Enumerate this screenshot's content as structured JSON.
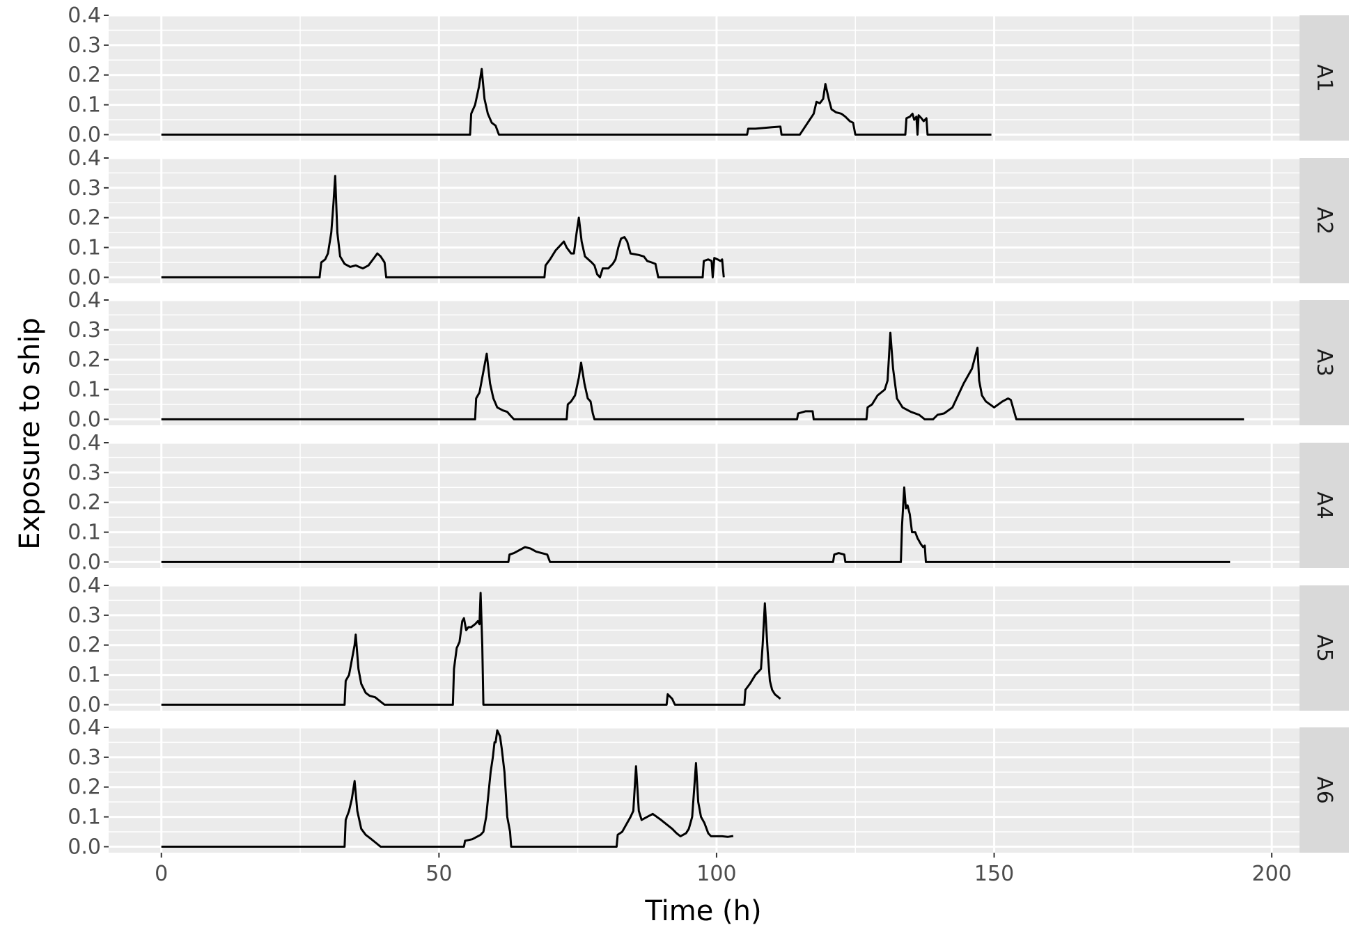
{
  "chart_data": {
    "type": "line",
    "xlabel": "Time (h)",
    "ylabel": "Exposure to ship",
    "xlim": [
      -9.5,
      205
    ],
    "ylim": [
      -0.02,
      0.4
    ],
    "x_ticks": [
      0,
      50,
      100,
      150,
      200
    ],
    "x_tick_labels": [
      "0",
      "50",
      "100",
      "150",
      "200"
    ],
    "y_ticks": [
      0,
      0.1,
      0.2,
      0.3,
      0.4
    ],
    "y_tick_labels": [
      "0.0",
      "0.1",
      "0.2",
      "0.3",
      "0.4"
    ],
    "grid": true,
    "facet_direction": "rows",
    "line_color": "#000000",
    "panel_background": "#ebebeb",
    "strip_background": "#d9d9d9",
    "series": [
      {
        "name": "A1",
        "points": [
          [
            0,
            0
          ],
          [
            55.6,
            0
          ],
          [
            55.8,
            0.07
          ],
          [
            56.5,
            0.1
          ],
          [
            57.2,
            0.16
          ],
          [
            57.7,
            0.22
          ],
          [
            58.2,
            0.12
          ],
          [
            58.8,
            0.07
          ],
          [
            59.5,
            0.04
          ],
          [
            60.2,
            0.03
          ],
          [
            60.6,
            0.01
          ],
          [
            60.8,
            0
          ],
          [
            105.5,
            0
          ],
          [
            105.7,
            0.02
          ],
          [
            107,
            0.02
          ],
          [
            110,
            0.025
          ],
          [
            111.5,
            0.027
          ],
          [
            111.7,
            0
          ],
          [
            115,
            0
          ],
          [
            117.5,
            0.07
          ],
          [
            118,
            0.11
          ],
          [
            118.6,
            0.105
          ],
          [
            119.2,
            0.12
          ],
          [
            119.6,
            0.17
          ],
          [
            120.2,
            0.12
          ],
          [
            120.7,
            0.085
          ],
          [
            121.5,
            0.075
          ],
          [
            122.5,
            0.07
          ],
          [
            123.2,
            0.06
          ],
          [
            124,
            0.045
          ],
          [
            124.6,
            0.04
          ],
          [
            125,
            0
          ],
          [
            134,
            0
          ],
          [
            134.2,
            0.055
          ],
          [
            134.8,
            0.06
          ],
          [
            135.3,
            0.07
          ],
          [
            135.6,
            0.05
          ],
          [
            136,
            0.06
          ],
          [
            136.2,
            0
          ],
          [
            136.4,
            0.065
          ],
          [
            136.9,
            0.055
          ],
          [
            137.3,
            0.045
          ],
          [
            137.8,
            0.055
          ],
          [
            138,
            0
          ],
          [
            149.5,
            0
          ]
        ]
      },
      {
        "name": "A2",
        "points": [
          [
            0,
            0
          ],
          [
            28.5,
            0
          ],
          [
            28.8,
            0.05
          ],
          [
            29.5,
            0.06
          ],
          [
            30,
            0.08
          ],
          [
            30.6,
            0.15
          ],
          [
            31,
            0.25
          ],
          [
            31.3,
            0.34
          ],
          [
            31.7,
            0.15
          ],
          [
            32.2,
            0.07
          ],
          [
            33,
            0.045
          ],
          [
            34,
            0.035
          ],
          [
            35,
            0.04
          ],
          [
            35.6,
            0.035
          ],
          [
            36.3,
            0.03
          ],
          [
            37.3,
            0.04
          ],
          [
            38.3,
            0.065
          ],
          [
            38.9,
            0.08
          ],
          [
            39.5,
            0.07
          ],
          [
            40.2,
            0.05
          ],
          [
            40.5,
            0
          ],
          [
            69,
            0
          ],
          [
            69.2,
            0.04
          ],
          [
            70,
            0.06
          ],
          [
            71,
            0.09
          ],
          [
            72,
            0.11
          ],
          [
            72.5,
            0.12
          ],
          [
            73,
            0.1
          ],
          [
            73.8,
            0.08
          ],
          [
            74.3,
            0.08
          ],
          [
            74.8,
            0.15
          ],
          [
            75.2,
            0.2
          ],
          [
            75.7,
            0.12
          ],
          [
            76.3,
            0.07
          ],
          [
            77.5,
            0.05
          ],
          [
            78,
            0.04
          ],
          [
            78.5,
            0.01
          ],
          [
            79,
            0
          ],
          [
            79.5,
            0.03
          ],
          [
            80.5,
            0.03
          ],
          [
            81.3,
            0.045
          ],
          [
            81.8,
            0.06
          ],
          [
            82.3,
            0.1
          ],
          [
            82.8,
            0.13
          ],
          [
            83.4,
            0.135
          ],
          [
            83.9,
            0.12
          ],
          [
            84.5,
            0.08
          ],
          [
            86,
            0.075
          ],
          [
            86.9,
            0.07
          ],
          [
            87.5,
            0.055
          ],
          [
            88.3,
            0.05
          ],
          [
            89,
            0.045
          ],
          [
            89.5,
            0
          ],
          [
            97.5,
            0
          ],
          [
            97.7,
            0.055
          ],
          [
            98.5,
            0.06
          ],
          [
            99.1,
            0.055
          ],
          [
            99.3,
            0
          ],
          [
            99.6,
            0.065
          ],
          [
            100.2,
            0.06
          ],
          [
            100.7,
            0.055
          ],
          [
            101,
            0.06
          ],
          [
            101.3,
            0
          ]
        ]
      },
      {
        "name": "A3",
        "points": [
          [
            0,
            0
          ],
          [
            56.5,
            0
          ],
          [
            56.7,
            0.07
          ],
          [
            57.3,
            0.09
          ],
          [
            57.8,
            0.14
          ],
          [
            58.2,
            0.18
          ],
          [
            58.6,
            0.22
          ],
          [
            59.2,
            0.12
          ],
          [
            59.8,
            0.07
          ],
          [
            60.5,
            0.04
          ],
          [
            61.5,
            0.03
          ],
          [
            62.3,
            0.025
          ],
          [
            63,
            0.01
          ],
          [
            63.5,
            0
          ],
          [
            73,
            0
          ],
          [
            73.2,
            0.05
          ],
          [
            73.8,
            0.06
          ],
          [
            74.5,
            0.08
          ],
          [
            75.2,
            0.14
          ],
          [
            75.6,
            0.19
          ],
          [
            76.2,
            0.12
          ],
          [
            76.8,
            0.07
          ],
          [
            77.3,
            0.06
          ],
          [
            77.7,
            0.02
          ],
          [
            78,
            0
          ],
          [
            114.5,
            0
          ],
          [
            114.7,
            0.02
          ],
          [
            116,
            0.027
          ],
          [
            117.3,
            0.027
          ],
          [
            117.5,
            0
          ],
          [
            127,
            0
          ],
          [
            127.2,
            0.04
          ],
          [
            128,
            0.05
          ],
          [
            129,
            0.08
          ],
          [
            130.3,
            0.1
          ],
          [
            130.8,
            0.13
          ],
          [
            131.3,
            0.29
          ],
          [
            131.8,
            0.17
          ],
          [
            132.5,
            0.07
          ],
          [
            133.5,
            0.04
          ],
          [
            135,
            0.025
          ],
          [
            136.5,
            0.015
          ],
          [
            137.5,
            0
          ],
          [
            139,
            0
          ],
          [
            139.8,
            0.015
          ],
          [
            141,
            0.02
          ],
          [
            142.5,
            0.04
          ],
          [
            144.5,
            0.12
          ],
          [
            146,
            0.17
          ],
          [
            147,
            0.24
          ],
          [
            147.3,
            0.13
          ],
          [
            147.8,
            0.08
          ],
          [
            148.5,
            0.06
          ],
          [
            150,
            0.04
          ],
          [
            151.5,
            0.06
          ],
          [
            152.5,
            0.07
          ],
          [
            153,
            0.065
          ],
          [
            154,
            0
          ],
          [
            195,
            0
          ]
        ]
      },
      {
        "name": "A4",
        "points": [
          [
            0,
            0
          ],
          [
            62.5,
            0
          ],
          [
            62.7,
            0.025
          ],
          [
            63.5,
            0.03
          ],
          [
            64.5,
            0.04
          ],
          [
            65.5,
            0.05
          ],
          [
            66.5,
            0.045
          ],
          [
            67.5,
            0.035
          ],
          [
            68.5,
            0.03
          ],
          [
            69.5,
            0.025
          ],
          [
            70,
            0
          ],
          [
            121,
            0
          ],
          [
            121.2,
            0.025
          ],
          [
            122,
            0.03
          ],
          [
            123,
            0.025
          ],
          [
            123.2,
            0
          ],
          [
            133.2,
            0
          ],
          [
            133.4,
            0.12
          ],
          [
            133.8,
            0.25
          ],
          [
            134.1,
            0.18
          ],
          [
            134.4,
            0.19
          ],
          [
            134.8,
            0.16
          ],
          [
            135.2,
            0.1
          ],
          [
            135.8,
            0.1
          ],
          [
            136.2,
            0.08
          ],
          [
            136.8,
            0.06
          ],
          [
            137.2,
            0.05
          ],
          [
            137.5,
            0.055
          ],
          [
            137.7,
            0
          ],
          [
            192.5,
            0
          ]
        ]
      },
      {
        "name": "A5",
        "points": [
          [
            0,
            0
          ],
          [
            33,
            0
          ],
          [
            33.2,
            0.08
          ],
          [
            33.8,
            0.1
          ],
          [
            34.3,
            0.15
          ],
          [
            34.8,
            0.2
          ],
          [
            35,
            0.235
          ],
          [
            35.5,
            0.12
          ],
          [
            36,
            0.07
          ],
          [
            36.8,
            0.04
          ],
          [
            37.5,
            0.03
          ],
          [
            38.5,
            0.025
          ],
          [
            39.5,
            0.01
          ],
          [
            40.2,
            0
          ],
          [
            52.5,
            0
          ],
          [
            52.7,
            0.12
          ],
          [
            53.2,
            0.19
          ],
          [
            53.7,
            0.21
          ],
          [
            54.2,
            0.28
          ],
          [
            54.5,
            0.29
          ],
          [
            54.9,
            0.25
          ],
          [
            55.3,
            0.26
          ],
          [
            55.8,
            0.26
          ],
          [
            56.5,
            0.27
          ],
          [
            57,
            0.28
          ],
          [
            57.3,
            0.27
          ],
          [
            57.5,
            0.375
          ],
          [
            57.8,
            0.2
          ],
          [
            58,
            0
          ],
          [
            91,
            0
          ],
          [
            91.2,
            0.035
          ],
          [
            92,
            0.02
          ],
          [
            92.5,
            0
          ],
          [
            105,
            0
          ],
          [
            105.2,
            0.05
          ],
          [
            106,
            0.07
          ],
          [
            107,
            0.1
          ],
          [
            107.5,
            0.11
          ],
          [
            108,
            0.12
          ],
          [
            108.3,
            0.2
          ],
          [
            108.7,
            0.34
          ],
          [
            109.2,
            0.18
          ],
          [
            109.6,
            0.08
          ],
          [
            110,
            0.05
          ],
          [
            110.5,
            0.035
          ],
          [
            111.5,
            0.02
          ]
        ]
      },
      {
        "name": "A6",
        "points": [
          [
            0,
            0
          ],
          [
            33,
            0
          ],
          [
            33.2,
            0.09
          ],
          [
            33.8,
            0.12
          ],
          [
            34.3,
            0.16
          ],
          [
            34.8,
            0.22
          ],
          [
            35.3,
            0.12
          ],
          [
            36,
            0.06
          ],
          [
            36.8,
            0.04
          ],
          [
            37.5,
            0.03
          ],
          [
            38.5,
            0.015
          ],
          [
            39.5,
            0
          ],
          [
            54.5,
            0
          ],
          [
            54.7,
            0.02
          ],
          [
            56,
            0.025
          ],
          [
            57.5,
            0.04
          ],
          [
            58,
            0.05
          ],
          [
            58.5,
            0.1
          ],
          [
            59.3,
            0.25
          ],
          [
            59.7,
            0.3
          ],
          [
            60,
            0.35
          ],
          [
            60.2,
            0.35
          ],
          [
            60.5,
            0.39
          ],
          [
            61,
            0.37
          ],
          [
            61.3,
            0.33
          ],
          [
            61.8,
            0.25
          ],
          [
            62.3,
            0.1
          ],
          [
            62.8,
            0.05
          ],
          [
            63,
            0
          ],
          [
            82,
            0
          ],
          [
            82.2,
            0.04
          ],
          [
            83,
            0.05
          ],
          [
            84.5,
            0.1
          ],
          [
            85,
            0.12
          ],
          [
            85.5,
            0.27
          ],
          [
            86,
            0.12
          ],
          [
            86.5,
            0.09
          ],
          [
            87.5,
            0.1
          ],
          [
            88.5,
            0.11
          ],
          [
            90,
            0.09
          ],
          [
            92,
            0.06
          ],
          [
            92.8,
            0.045
          ],
          [
            93.5,
            0.035
          ],
          [
            94.5,
            0.045
          ],
          [
            95,
            0.06
          ],
          [
            95.6,
            0.1
          ],
          [
            96,
            0.2
          ],
          [
            96.3,
            0.28
          ],
          [
            96.7,
            0.15
          ],
          [
            97.2,
            0.1
          ],
          [
            97.8,
            0.08
          ],
          [
            98.5,
            0.045
          ],
          [
            99,
            0.035
          ],
          [
            101,
            0.035
          ],
          [
            102,
            0.033
          ],
          [
            103,
            0.036
          ]
        ]
      }
    ]
  }
}
